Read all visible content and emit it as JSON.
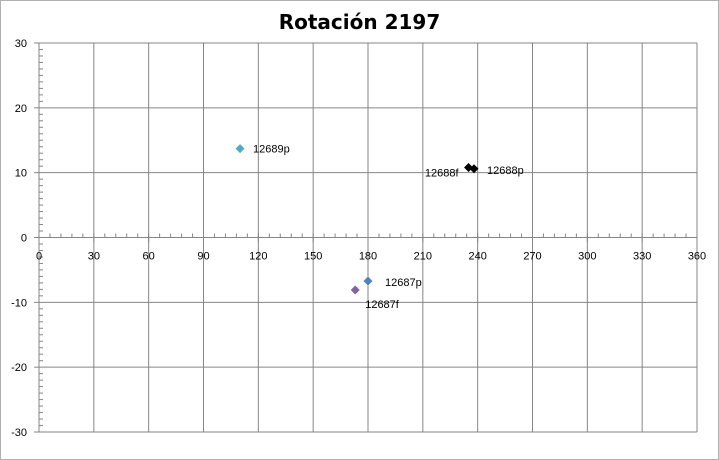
{
  "chart_data": {
    "type": "scatter",
    "title": "Rotación 2197",
    "xlabel": "",
    "ylabel": "",
    "xlim": [
      0,
      360
    ],
    "ylim": [
      -30,
      30
    ],
    "x_ticks": [
      0,
      30,
      60,
      90,
      120,
      150,
      180,
      210,
      240,
      270,
      300,
      330,
      360
    ],
    "y_ticks": [
      30,
      20,
      10,
      0,
      -10,
      -20,
      -30
    ],
    "grid": true,
    "legend": "none",
    "points": [
      {
        "label": "12689p",
        "x": 110,
        "y": 13.7,
        "color": "#4bacc6"
      },
      {
        "label": "12688f",
        "x": 235,
        "y": 10.8,
        "color": "#000000"
      },
      {
        "label": "12688p",
        "x": 238,
        "y": 10.6,
        "color": "#000000"
      },
      {
        "label": "12687p",
        "x": 180,
        "y": -6.7,
        "color": "#4f81bd"
      },
      {
        "label": "12687f",
        "x": 173,
        "y": -8.1,
        "color": "#8064a2"
      }
    ]
  },
  "colors": {
    "grid": "#868686",
    "axis": "#868686",
    "frame": "#b0b0b0"
  }
}
